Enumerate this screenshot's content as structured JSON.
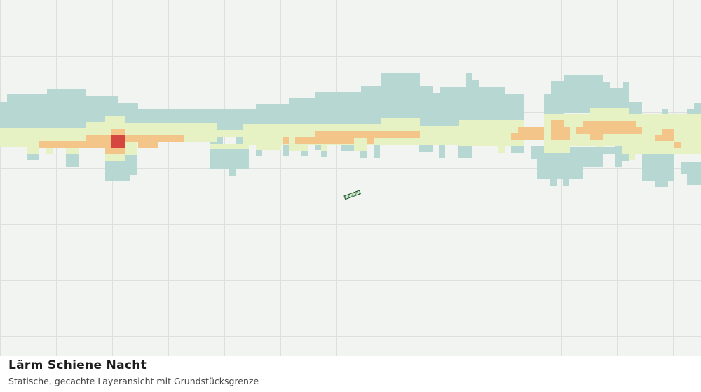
{
  "map": {
    "title": "Lärm Schiene Nacht",
    "subtitle": "Statische, gecachte Layeransicht mit Grundstücksgrenze"
  }
}
